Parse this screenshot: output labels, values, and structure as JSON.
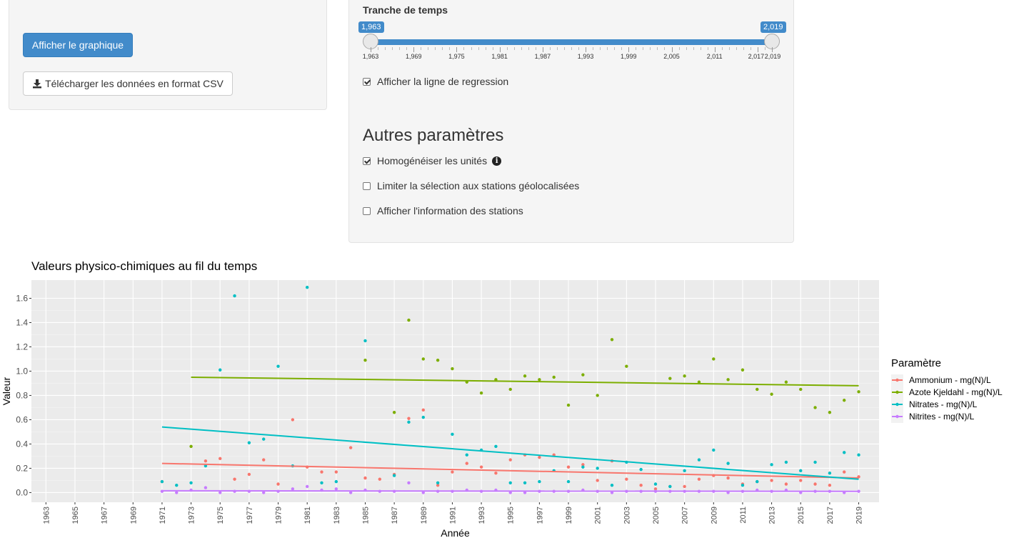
{
  "sidebar": {
    "show_chart_label": "Afficher le graphique",
    "download_csv_label": "Télécharger les données en format CSV",
    "download_icon": "download-icon"
  },
  "time_range": {
    "label": "Tranche de temps",
    "min": 1963,
    "max": 2019,
    "from_label": "1,963",
    "to_label": "2,019",
    "ticks": [
      "1,963",
      "1,969",
      "1,975",
      "1,981",
      "1,987",
      "1,993",
      "1,999",
      "2,005",
      "2,011",
      "2,017",
      "2,019"
    ]
  },
  "options": {
    "regression_label": "Afficher la ligne de regression",
    "regression_checked": true
  },
  "other_params": {
    "heading": "Autres paramètres",
    "homogenize_label": "Homogénéiser les unités",
    "homogenize_checked": true,
    "info_icon": "info-circle-icon",
    "limit_geo_label": "Limiter la sélection aux stations géolocalisées",
    "limit_geo_checked": false,
    "station_info_label": "Afficher l'information des stations",
    "station_info_checked": false
  },
  "chart_data": {
    "type": "scatter",
    "title": "Valeurs physico-chimiques au fil du temps",
    "xlabel": "Année",
    "ylabel": "Valeur",
    "xlim": [
      1962,
      2020.4
    ],
    "ylim": [
      -0.08,
      1.75
    ],
    "x_ticks": [
      1963,
      1965,
      1967,
      1969,
      1971,
      1973,
      1975,
      1977,
      1979,
      1981,
      1983,
      1985,
      1987,
      1989,
      1991,
      1993,
      1995,
      1997,
      1999,
      2001,
      2003,
      2005,
      2007,
      2009,
      2011,
      2013,
      2015,
      2017,
      2019
    ],
    "y_ticks": [
      0.0,
      0.2,
      0.4,
      0.6,
      0.8,
      1.0,
      1.2,
      1.4,
      1.6
    ],
    "y_tick_labels": [
      "0.0",
      "0.2",
      "0.4",
      "0.6",
      "0.8",
      "1.0",
      "1.2",
      "1.4",
      "1.6"
    ],
    "grid": true,
    "legend_title": "Paramètre",
    "legend_position": "right",
    "series": [
      {
        "name": "Ammonium - mg(N)/L",
        "color": "#f8766d",
        "x": [
          1971,
          1974,
          1975,
          1976,
          1977,
          1978,
          1979,
          1980,
          1981,
          1982,
          1983,
          1984,
          1985,
          1986,
          1987,
          1988,
          1989,
          1990,
          1991,
          1992,
          1993,
          1994,
          1995,
          1996,
          1997,
          1998,
          1999,
          2000,
          2001,
          2002,
          2003,
          2004,
          2005,
          2006,
          2007,
          2008,
          2009,
          2010,
          2011,
          2012,
          2013,
          2014,
          2015,
          2016,
          2017,
          2018,
          2019
        ],
        "y": [
          0.09,
          0.26,
          0.28,
          0.11,
          0.15,
          0.27,
          0.07,
          0.6,
          0.21,
          0.17,
          0.17,
          0.37,
          0.12,
          0.11,
          0.15,
          0.61,
          0.68,
          0.06,
          0.17,
          0.24,
          0.21,
          0.16,
          0.27,
          0.31,
          0.29,
          0.31,
          0.21,
          0.23,
          0.1,
          0.26,
          0.11,
          0.06,
          0.03,
          0.05,
          0.05,
          0.11,
          0.14,
          0.12,
          0.07,
          0.09,
          0.1,
          0.07,
          0.1,
          0.07,
          0.06,
          0.17,
          0.13
        ],
        "trend": [
          [
            1971,
            0.24
          ],
          [
            2019,
            0.12
          ]
        ]
      },
      {
        "name": "Azote Kjeldahl - mg(N)/L",
        "color": "#7cae00",
        "x": [
          1973,
          1985,
          1987,
          1988,
          1989,
          1990,
          1991,
          1992,
          1993,
          1994,
          1995,
          1996,
          1997,
          1998,
          1999,
          2000,
          2001,
          2002,
          2003,
          2006,
          2007,
          2008,
          2009,
          2010,
          2011,
          2012,
          2013,
          2014,
          2015,
          2016,
          2017,
          2018,
          2019
        ],
        "y": [
          0.38,
          1.09,
          0.66,
          1.42,
          1.1,
          1.09,
          1.02,
          0.91,
          0.82,
          0.93,
          0.85,
          0.96,
          0.93,
          0.95,
          0.72,
          0.97,
          0.8,
          1.26,
          1.04,
          0.94,
          0.96,
          0.91,
          1.1,
          0.93,
          1.01,
          0.85,
          0.81,
          0.91,
          0.85,
          0.7,
          0.66,
          0.76,
          0.83
        ],
        "trend": [
          [
            1973,
            0.95
          ],
          [
            2019,
            0.88
          ]
        ]
      },
      {
        "name": "Nitrates - mg(N)/L",
        "color": "#00bfc4",
        "x": [
          1971,
          1972,
          1973,
          1974,
          1975,
          1976,
          1977,
          1978,
          1979,
          1980,
          1981,
          1982,
          1983,
          1985,
          1987,
          1988,
          1989,
          1990,
          1991,
          1992,
          1993,
          1994,
          1995,
          1996,
          1997,
          1998,
          1999,
          2000,
          2001,
          2002,
          2003,
          2004,
          2005,
          2006,
          2007,
          2008,
          2009,
          2010,
          2011,
          2012,
          2013,
          2014,
          2015,
          2016,
          2017,
          2018,
          2019
        ],
        "y": [
          0.09,
          0.06,
          0.08,
          0.22,
          1.01,
          1.62,
          0.41,
          0.44,
          1.04,
          0.22,
          1.69,
          0.08,
          0.09,
          1.25,
          0.14,
          0.58,
          0.62,
          0.08,
          0.48,
          0.31,
          0.35,
          0.38,
          0.08,
          0.08,
          0.09,
          0.18,
          0.09,
          0.21,
          0.2,
          0.06,
          0.25,
          0.19,
          0.07,
          0.05,
          0.18,
          0.27,
          0.35,
          0.24,
          0.06,
          0.09,
          0.23,
          0.25,
          0.18,
          0.25,
          0.16,
          0.33,
          0.31
        ],
        "trend": [
          [
            1971,
            0.54
          ],
          [
            2019,
            0.11
          ]
        ]
      },
      {
        "name": "Nitrites - mg(N)/L",
        "color": "#c77cff",
        "x": [
          1971,
          1972,
          1973,
          1974,
          1975,
          1976,
          1977,
          1978,
          1979,
          1980,
          1981,
          1982,
          1983,
          1984,
          1985,
          1986,
          1987,
          1988,
          1989,
          1990,
          1991,
          1992,
          1993,
          1994,
          1995,
          1996,
          1997,
          1998,
          1999,
          2000,
          2001,
          2002,
          2003,
          2004,
          2005,
          2006,
          2007,
          2008,
          2009,
          2010,
          2011,
          2012,
          2013,
          2014,
          2015,
          2016,
          2017,
          2018,
          2019
        ],
        "y": [
          0.01,
          0.0,
          0.02,
          0.04,
          0.0,
          0.01,
          0.01,
          0.0,
          0.01,
          0.03,
          0.05,
          0.02,
          0.03,
          0.0,
          0.02,
          0.01,
          0.01,
          0.08,
          0.0,
          0.01,
          0.01,
          0.02,
          0.01,
          0.02,
          0.0,
          0.0,
          0.01,
          0.01,
          0.01,
          0.02,
          0.01,
          0.0,
          0.01,
          0.01,
          0.01,
          0.01,
          0.01,
          0.01,
          0.01,
          0.0,
          0.01,
          0.02,
          0.01,
          0.02,
          0.0,
          0.01,
          0.01,
          0.0,
          0.01
        ],
        "trend": [
          [
            1971,
            0.015
          ],
          [
            2019,
            0.01
          ]
        ]
      }
    ]
  }
}
